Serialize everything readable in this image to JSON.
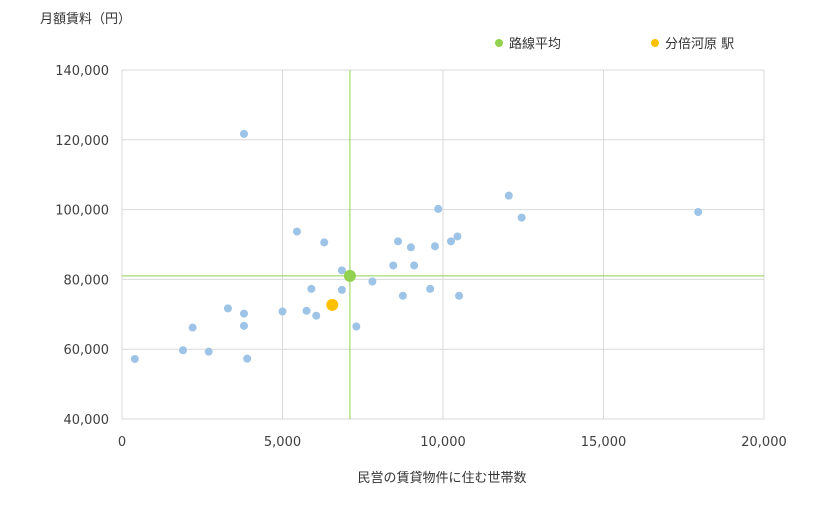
{
  "chart_data": {
    "type": "scatter",
    "title": "",
    "ylabel": "月額賃料（円）",
    "xlabel": "民営の賃貸物件に住む世帯数",
    "xlim": [
      0,
      20000
    ],
    "ylim": [
      40000,
      140000
    ],
    "x_ticks": [
      0,
      5000,
      10000,
      15000,
      20000
    ],
    "y_ticks": [
      40000,
      60000,
      80000,
      100000,
      120000,
      140000
    ],
    "x_tick_labels": [
      "0",
      "5,000",
      "10,000",
      "15,000",
      "20,000"
    ],
    "y_tick_labels": [
      "40,000",
      "60,000",
      "80,000",
      "100,000",
      "120,000",
      "140,000"
    ],
    "grid": true,
    "legend_position": "top-right",
    "colors": {
      "stations": "#9dc3e6",
      "average": "#92d050",
      "highlight": "#ffc000",
      "reference_lines": "#92d050"
    },
    "series": [
      {
        "name": "",
        "role": "stations",
        "points": [
          [
            400,
            57200
          ],
          [
            1900,
            59700
          ],
          [
            2200,
            66200
          ],
          [
            2700,
            59300
          ],
          [
            3300,
            71700
          ],
          [
            3800,
            70200
          ],
          [
            3800,
            66700
          ],
          [
            3800,
            121700
          ],
          [
            3900,
            57300
          ],
          [
            5000,
            70800
          ],
          [
            5450,
            93700
          ],
          [
            5750,
            71000
          ],
          [
            5900,
            77300
          ],
          [
            6050,
            69600
          ],
          [
            6300,
            90600
          ],
          [
            6850,
            82600
          ],
          [
            6850,
            77000
          ],
          [
            7300,
            66500
          ],
          [
            7800,
            79400
          ],
          [
            8450,
            84000
          ],
          [
            8600,
            90900
          ],
          [
            8750,
            75300
          ],
          [
            9000,
            89200
          ],
          [
            9100,
            84000
          ],
          [
            9600,
            77300
          ],
          [
            9750,
            89500
          ],
          [
            9850,
            100200
          ],
          [
            10250,
            90900
          ],
          [
            10450,
            92300
          ],
          [
            10500,
            75300
          ],
          [
            12050,
            104000
          ],
          [
            12450,
            97700
          ],
          [
            17950,
            99300
          ]
        ]
      },
      {
        "name": "路線平均",
        "role": "average",
        "points": [
          [
            7100,
            81000
          ]
        ]
      },
      {
        "name": "分倍河原 駅",
        "role": "highlight",
        "points": [
          [
            6550,
            72700
          ]
        ]
      }
    ],
    "reference_lines": {
      "x": 7100,
      "y": 81000
    }
  }
}
